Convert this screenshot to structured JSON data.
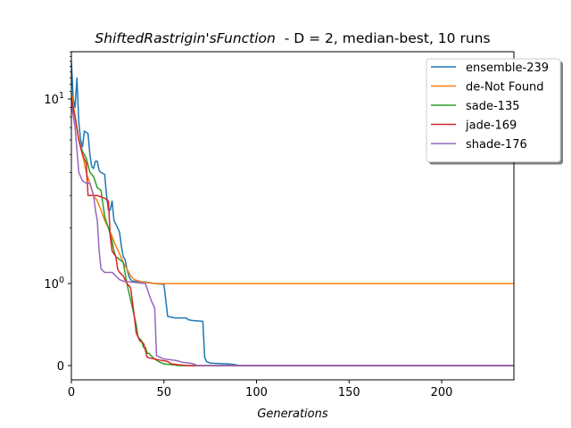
{
  "chart_data": {
    "type": "line",
    "title": {
      "function_name": "ShiftedRastrigin'sFunction",
      "rest": "  - D = 2, median-best, 10 runs"
    },
    "xlabel": "Generations",
    "ylabel": "",
    "xlim": [
      0,
      239
    ],
    "x_ticks": [
      0,
      50,
      100,
      150,
      200
    ],
    "y_scale": "symlog",
    "y_ticks": [
      {
        "value": 0,
        "label": "0"
      },
      {
        "value": 1,
        "label": "10^0"
      },
      {
        "value": 10,
        "label": "10^1"
      }
    ],
    "ylim_top": 18,
    "grid": false,
    "legend_position": "top-right",
    "series": [
      {
        "name": "ensemble-239",
        "color": "#1f77b4",
        "points": [
          [
            0,
            16
          ],
          [
            1,
            10
          ],
          [
            2,
            9
          ],
          [
            3,
            13
          ],
          [
            4,
            7.5
          ],
          [
            5,
            6
          ],
          [
            6,
            5.5
          ],
          [
            7,
            6.7
          ],
          [
            9,
            6.5
          ],
          [
            10,
            5
          ],
          [
            11,
            4.3
          ],
          [
            12,
            4.2
          ],
          [
            13,
            4.6
          ],
          [
            14,
            4.6
          ],
          [
            15,
            4.1
          ],
          [
            16,
            4
          ],
          [
            18,
            3.9
          ],
          [
            19,
            3
          ],
          [
            20,
            2.5
          ],
          [
            21,
            2.5
          ],
          [
            22,
            2.8
          ],
          [
            23,
            2.2
          ],
          [
            24,
            2.1
          ],
          [
            25,
            2
          ],
          [
            26,
            1.9
          ],
          [
            27,
            1.6
          ],
          [
            28,
            1.4
          ],
          [
            29,
            1.35
          ],
          [
            30,
            1.2
          ],
          [
            31,
            1.1
          ],
          [
            32,
            1.05
          ],
          [
            33,
            1.03
          ],
          [
            40,
            1.02
          ],
          [
            45,
            1
          ],
          [
            50,
            0.99
          ],
          [
            52,
            0.6
          ],
          [
            56,
            0.58
          ],
          [
            62,
            0.58
          ],
          [
            63,
            0.56
          ],
          [
            65,
            0.55
          ],
          [
            71,
            0.54
          ],
          [
            72,
            0.1
          ],
          [
            73,
            0.05
          ],
          [
            75,
            0.03
          ],
          [
            85,
            0.02
          ],
          [
            89,
            0.01
          ],
          [
            90,
            0
          ],
          [
            239,
            0
          ]
        ]
      },
      {
        "name": "de-Not Found",
        "color": "#ff7f0e",
        "points": [
          [
            0,
            11
          ],
          [
            2,
            8
          ],
          [
            4,
            6
          ],
          [
            6,
            5
          ],
          [
            8,
            4
          ],
          [
            10,
            3.5
          ],
          [
            12,
            3
          ],
          [
            14,
            2.8
          ],
          [
            16,
            2.5
          ],
          [
            18,
            2.2
          ],
          [
            20,
            2
          ],
          [
            22,
            1.8
          ],
          [
            24,
            1.6
          ],
          [
            26,
            1.45
          ],
          [
            28,
            1.3
          ],
          [
            30,
            1.2
          ],
          [
            32,
            1.1
          ],
          [
            34,
            1.05
          ],
          [
            38,
            1.02
          ],
          [
            45,
            1
          ],
          [
            239,
            1
          ]
        ]
      },
      {
        "name": "sade-135",
        "color": "#2ca02c",
        "points": [
          [
            0,
            10
          ],
          [
            2,
            8
          ],
          [
            4,
            6
          ],
          [
            6,
            5.2
          ],
          [
            8,
            4.8
          ],
          [
            10,
            4
          ],
          [
            12,
            3.8
          ],
          [
            14,
            3.3
          ],
          [
            16,
            3.2
          ],
          [
            18,
            2.3
          ],
          [
            20,
            2
          ],
          [
            22,
            1.7
          ],
          [
            23,
            1.5
          ],
          [
            24,
            1.4
          ],
          [
            26,
            1.35
          ],
          [
            28,
            1.3
          ],
          [
            30,
            1
          ],
          [
            32,
            0.8
          ],
          [
            34,
            0.6
          ],
          [
            35,
            0.5
          ],
          [
            36,
            0.35
          ],
          [
            38,
            0.3
          ],
          [
            39,
            0.22
          ],
          [
            40,
            0.22
          ],
          [
            41,
            0.15
          ],
          [
            42,
            0.15
          ],
          [
            43,
            0.12
          ],
          [
            45,
            0.08
          ],
          [
            47,
            0.05
          ],
          [
            50,
            0.02
          ],
          [
            55,
            0.01
          ],
          [
            58,
            0
          ],
          [
            239,
            0
          ]
        ]
      },
      {
        "name": "jade-169",
        "color": "#d62728",
        "points": [
          [
            0,
            10
          ],
          [
            2,
            8
          ],
          [
            4,
            6
          ],
          [
            6,
            5
          ],
          [
            8,
            4.5
          ],
          [
            9,
            3
          ],
          [
            13,
            3
          ],
          [
            14,
            3
          ],
          [
            18,
            2.9
          ],
          [
            20,
            2.8
          ],
          [
            21,
            1.8
          ],
          [
            22,
            1.5
          ],
          [
            24,
            1.4
          ],
          [
            25,
            1.2
          ],
          [
            26,
            1.15
          ],
          [
            28,
            1.1
          ],
          [
            30,
            1
          ],
          [
            32,
            0.95
          ],
          [
            34,
            0.6
          ],
          [
            35,
            0.4
          ],
          [
            37,
            0.3
          ],
          [
            39,
            0.27
          ],
          [
            41,
            0.1
          ],
          [
            45,
            0.08
          ],
          [
            47,
            0.07
          ],
          [
            52,
            0.05
          ],
          [
            54,
            0.02
          ],
          [
            58,
            0.01
          ],
          [
            60,
            0.005
          ],
          [
            62,
            0
          ],
          [
            239,
            0
          ]
        ]
      },
      {
        "name": "shade-176",
        "color": "#9467bd",
        "points": [
          [
            0,
            9.5
          ],
          [
            2,
            7
          ],
          [
            4,
            4
          ],
          [
            6,
            3.6
          ],
          [
            8,
            3.5
          ],
          [
            10,
            3.5
          ],
          [
            12,
            3
          ],
          [
            13,
            2.5
          ],
          [
            14,
            2.2
          ],
          [
            15,
            1.5
          ],
          [
            16,
            1.2
          ],
          [
            18,
            1.15
          ],
          [
            22,
            1.15
          ],
          [
            24,
            1.1
          ],
          [
            26,
            1.05
          ],
          [
            28,
            1.03
          ],
          [
            32,
            1.02
          ],
          [
            40,
            1
          ],
          [
            43,
            0.8
          ],
          [
            45,
            0.7
          ],
          [
            46,
            0.12
          ],
          [
            48,
            0.1
          ],
          [
            50,
            0.08
          ],
          [
            54,
            0.07
          ],
          [
            57,
            0.06
          ],
          [
            60,
            0.04
          ],
          [
            64,
            0.03
          ],
          [
            66,
            0.02
          ],
          [
            68,
            0
          ],
          [
            239,
            0
          ]
        ]
      }
    ]
  }
}
